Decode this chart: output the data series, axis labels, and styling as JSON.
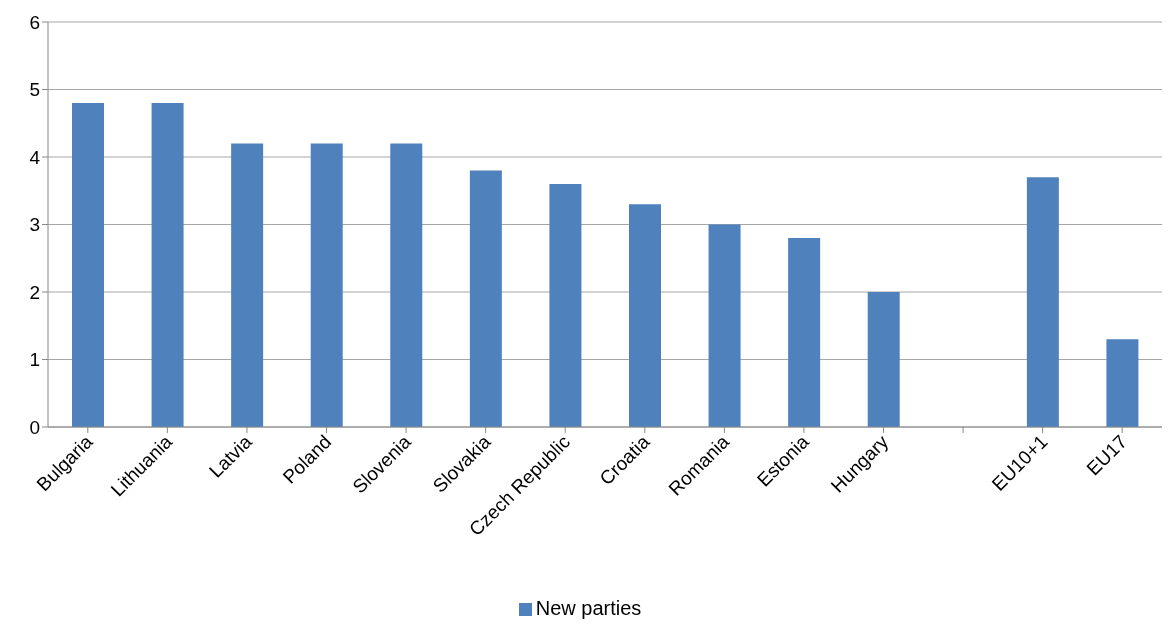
{
  "chart_data": {
    "type": "bar",
    "categories": [
      "Bulgaria",
      "Lithuania",
      "Latvia",
      "Poland",
      "Slovenia",
      "Slovakia",
      "Czech Republic",
      "Croatia",
      "Romania",
      "Estonia",
      "Hungary",
      null,
      "EU10+1",
      "EU17"
    ],
    "series": [
      {
        "name": "New parties",
        "color": "#4f81bd",
        "values": [
          4.8,
          4.8,
          4.2,
          4.2,
          4.2,
          3.8,
          3.6,
          3.3,
          3.0,
          2.8,
          2.0,
          null,
          3.7,
          1.3
        ]
      }
    ],
    "ylim": [
      0,
      6
    ],
    "yticks": [
      0,
      1,
      2,
      3,
      4,
      5,
      6
    ],
    "grid": "y",
    "legend": "bottom"
  }
}
